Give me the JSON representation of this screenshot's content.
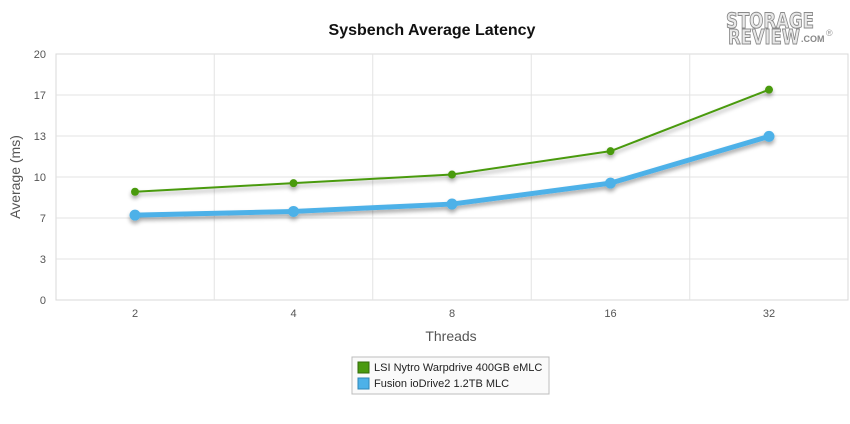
{
  "chart_data": {
    "type": "line",
    "title": "Sysbench Average Latency",
    "xlabel": "Threads",
    "ylabel": "Average (ms)",
    "categories": [
      "2",
      "4",
      "8",
      "16",
      "32"
    ],
    "y_ticks": [
      "0",
      "3",
      "7",
      "10",
      "13",
      "17",
      "20"
    ],
    "ylim": [
      0,
      20
    ],
    "grid": true,
    "legend_position": "bottom-center",
    "series": [
      {
        "name": "LSI Nytro Warpdrive 400GB eMLC",
        "values": [
          8.8,
          9.5,
          10.2,
          12.1,
          17.1
        ],
        "color": "#4a9a0f"
      },
      {
        "name": "Fusion ioDrive2 1.2TB MLC",
        "values": [
          6.9,
          7.2,
          7.8,
          9.5,
          13.3
        ],
        "color": "#4db1e8"
      }
    ]
  },
  "logo": {
    "line1": "STORAGE",
    "line2": "REVIEW",
    "suffix": ".COM",
    "mark": "®"
  }
}
